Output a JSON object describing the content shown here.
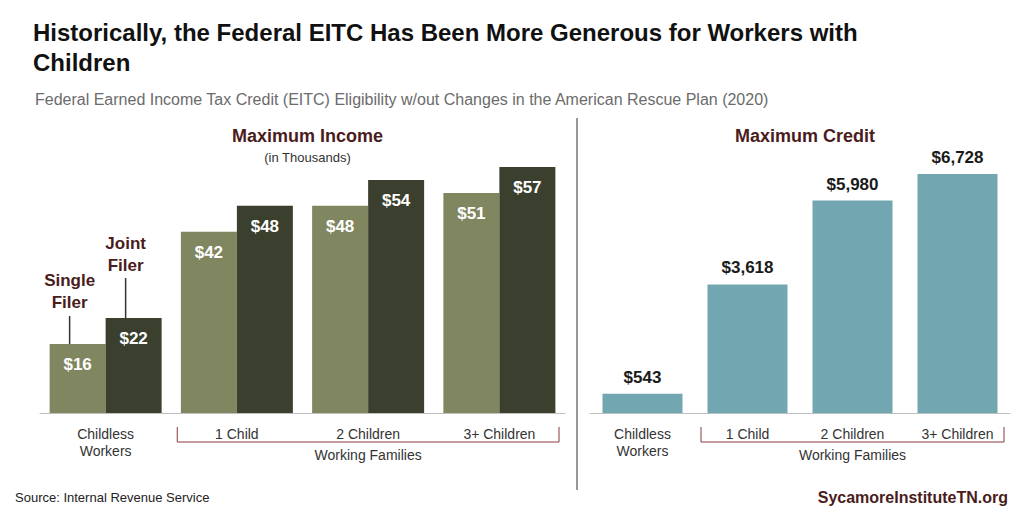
{
  "title": "Historically, the Federal EITC Has Been More Generous for Workers with\nChildren",
  "subtitle": "Federal Earned Income Tax Credit (EITC) Eligibility w/out Changes in the American Rescue Plan (2020)",
  "source": "Source: Internal Revenue Service",
  "site": "SycamoreInstituteTN.org",
  "chart_data": [
    {
      "type": "bar",
      "title": "Maximum Income",
      "subtitle": "(in Thousands)",
      "categories": [
        "Childless\nWorkers",
        "1 Child",
        "2 Children",
        "3+ Children"
      ],
      "category_group": {
        "label": "Working Families",
        "categories": [
          "1 Child",
          "2 Children",
          "3+ Children"
        ]
      },
      "series": [
        {
          "name": "Single Filer",
          "color": "#7f8660",
          "values": [
            16,
            42,
            48,
            51
          ],
          "value_labels": [
            "$16",
            "$42",
            "$48",
            "$51"
          ]
        },
        {
          "name": "Joint Filer",
          "color": "#3b3f2e",
          "values": [
            22,
            48,
            54,
            57
          ],
          "value_labels": [
            "$22",
            "$48",
            "$54",
            "$57"
          ]
        }
      ],
      "ylim": [
        0,
        57
      ],
      "grid": false,
      "data_labels": true,
      "tick_labels": "x"
    },
    {
      "type": "bar",
      "title": "Maximum Credit",
      "categories": [
        "Childless\nWorkers",
        "1 Child",
        "2 Children",
        "3+ Children"
      ],
      "category_group": {
        "label": "Working Families",
        "categories": [
          "1 Child",
          "2 Children",
          "3+ Children"
        ]
      },
      "values": [
        543,
        3618,
        5980,
        6728
      ],
      "value_labels": [
        "$543",
        "$3,618",
        "$5,980",
        "$6,728"
      ],
      "color": "#72a6b0",
      "ylim": [
        0,
        6728
      ],
      "grid": false,
      "data_labels": true,
      "tick_labels": "x"
    }
  ]
}
